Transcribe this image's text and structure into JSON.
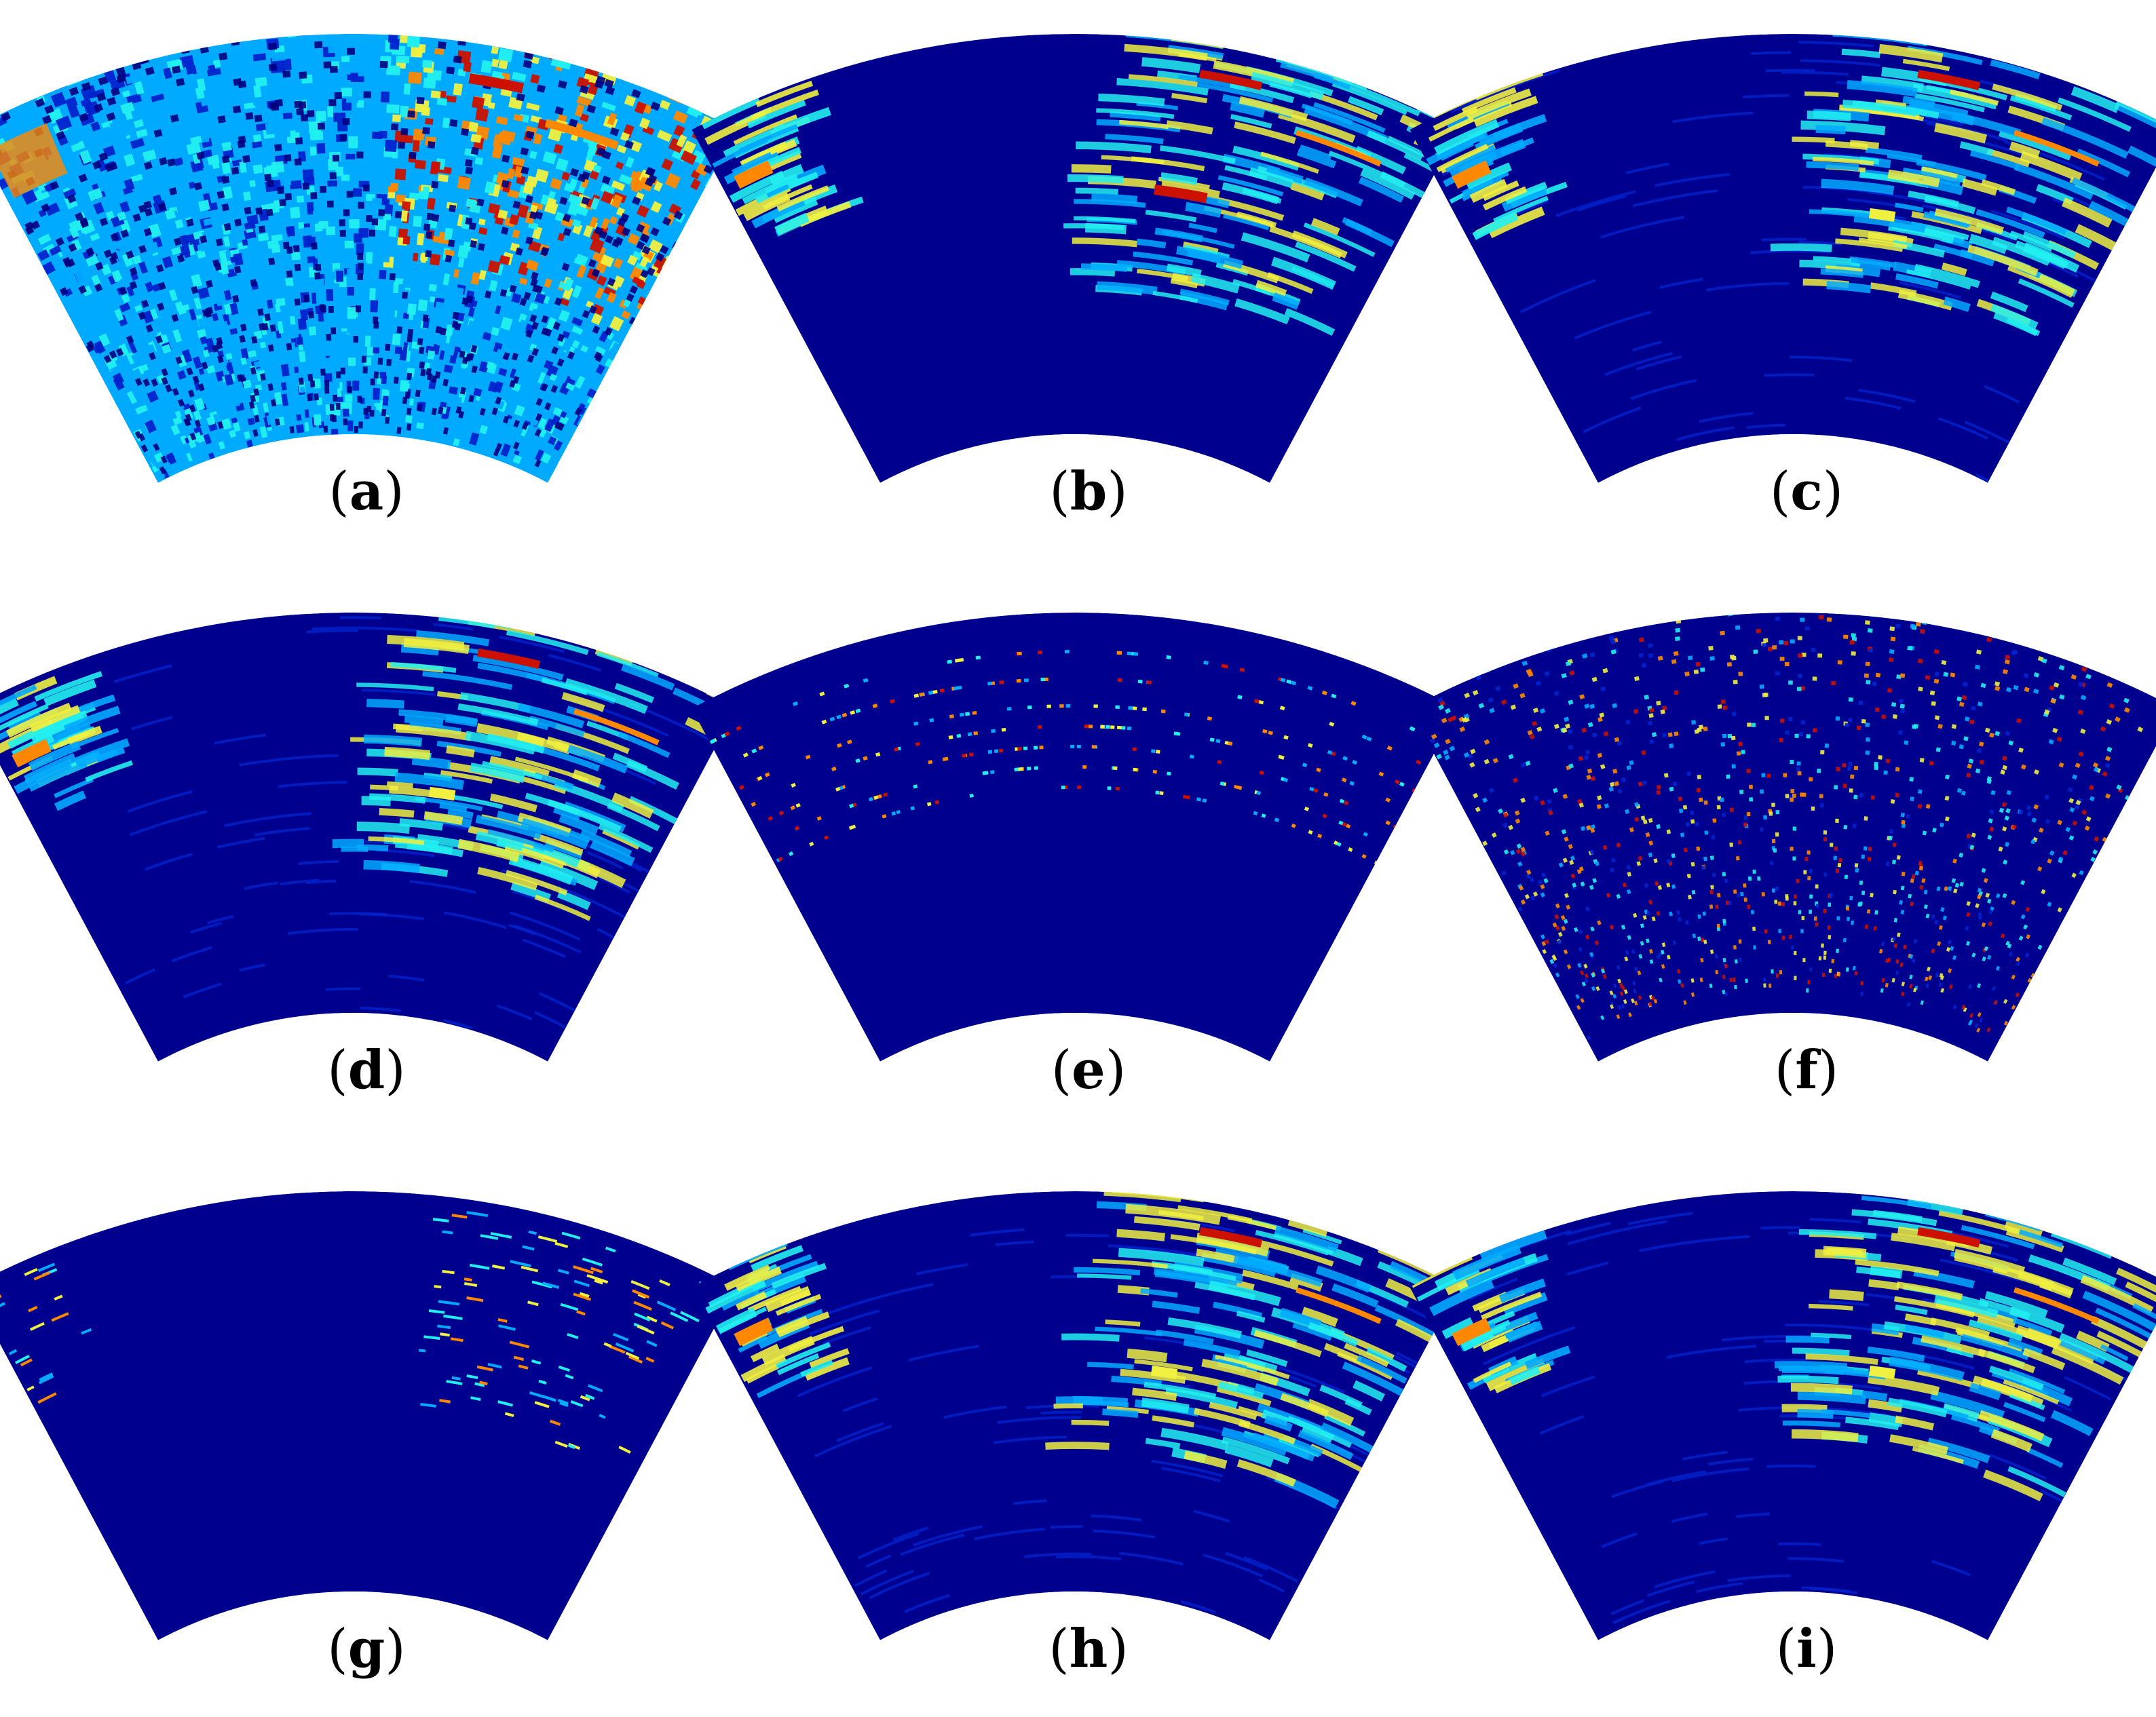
{
  "figure": {
    "panels": [
      {
        "id": "a",
        "label_open": "(",
        "label_letter": "a",
        "label_close": ")",
        "style": "noisy"
      },
      {
        "id": "b",
        "label_open": "(",
        "label_letter": "b",
        "label_close": ")",
        "style": "smooth"
      },
      {
        "id": "c",
        "label_open": "(",
        "label_letter": "c",
        "label_close": ")",
        "style": "smooth-banded"
      },
      {
        "id": "d",
        "label_open": "(",
        "label_letter": "d",
        "label_close": ")",
        "style": "smooth-banded"
      },
      {
        "id": "e",
        "label_open": "(",
        "label_letter": "e",
        "label_close": ")",
        "style": "sparse-arcs"
      },
      {
        "id": "f",
        "label_open": "(",
        "label_letter": "f",
        "label_close": ")",
        "style": "sparse-grid"
      },
      {
        "id": "g",
        "label_open": "(",
        "label_letter": "g",
        "label_close": ")",
        "style": "sparse-streaks"
      },
      {
        "id": "h",
        "label_open": "(",
        "label_letter": "h",
        "label_close": ")",
        "style": "smooth-banded"
      },
      {
        "id": "i",
        "label_open": "(",
        "label_letter": "i",
        "label_close": ")",
        "style": "smooth-banded"
      }
    ],
    "colors": {
      "background": "#00008F",
      "low": "#0022CC",
      "mid": "#00AAFF",
      "cyan": "#22F0F0",
      "yellow": "#F0F040",
      "orange": "#FF8800",
      "red": "#CC1100"
    },
    "colormap": "jet"
  }
}
